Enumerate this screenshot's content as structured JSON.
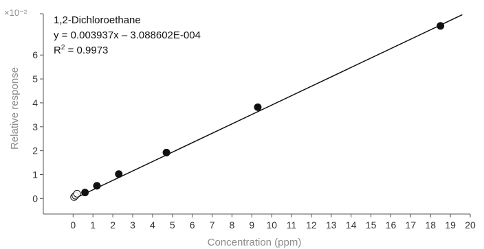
{
  "chart_data": {
    "type": "scatter",
    "title": "",
    "xlabel": "Concentration (ppm)",
    "ylabel": "Relative response",
    "y_multiplier": "×10⁻²",
    "xlim": [
      -1.5,
      20
    ],
    "ylim": [
      -0.65,
      7.9
    ],
    "x_ticks": [
      0,
      1,
      2,
      3,
      4,
      5,
      6,
      7,
      8,
      9,
      10,
      11,
      12,
      13,
      14,
      15,
      16,
      17,
      18,
      19,
      20
    ],
    "y_ticks": [
      0,
      1,
      2,
      3,
      4,
      5,
      6
    ],
    "grid": false,
    "annotation": {
      "compound": "1,2-Dichloroethane",
      "equation": "y = 0.003937x – 3.088602E-004",
      "r2_label": "R",
      "r2_sup": "2",
      "r2_value": " = 0.9973"
    },
    "fit_line": {
      "slope": 0.3937,
      "intercept": -0.0309,
      "x_start": 0.0,
      "x_end": 19.6
    },
    "series": [
      {
        "marker": "filled",
        "x": [
          0.6,
          1.2,
          2.3,
          4.7,
          9.3,
          18.5
        ],
        "y": [
          0.25,
          0.53,
          1.02,
          1.92,
          3.82,
          7.22
        ]
      },
      {
        "marker": "open",
        "x": [
          0.05,
          0.12,
          0.2
        ],
        "y": [
          0.06,
          0.12,
          0.2
        ]
      }
    ]
  }
}
